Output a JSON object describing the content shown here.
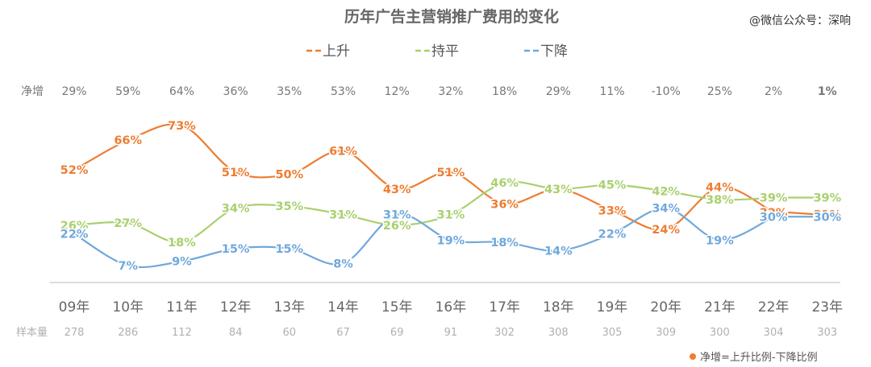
{
  "title": "历年广告主营销推广费用的变化",
  "watermark": "@微信公众号：深响",
  "footnote": "净增=上升比例-下降比例",
  "net_label": "净增",
  "sample_label": "样本量",
  "colors": {
    "up": "#ED7D31",
    "flat": "#A9D06E",
    "down": "#6FA8DC",
    "net_highlight": "#E02020",
    "text": "#777777",
    "footnote_dot": "#ED7D31"
  },
  "chart_data": {
    "type": "line",
    "title": "历年广告主营销推广费用的变化",
    "categories": [
      "09年",
      "10年",
      "11年",
      "12年",
      "13年",
      "14年",
      "15年",
      "16年",
      "17年",
      "18年",
      "19年",
      "20年",
      "21年",
      "22年",
      "23年"
    ],
    "series": [
      {
        "name": "上升",
        "key": "up",
        "values": [
          52,
          66,
          73,
          51,
          50,
          61,
          43,
          51,
          36,
          43,
          33,
          24,
          44,
          32,
          31
        ]
      },
      {
        "name": "持平",
        "key": "flat",
        "values": [
          26,
          27,
          18,
          34,
          35,
          31,
          26,
          31,
          46,
          43,
          45,
          42,
          38,
          39,
          39
        ]
      },
      {
        "name": "下降",
        "key": "down",
        "values": [
          22,
          7,
          9,
          15,
          15,
          8,
          31,
          19,
          18,
          14,
          22,
          34,
          19,
          30,
          30
        ]
      }
    ],
    "net_increase": [
      "29%",
      "59%",
      "64%",
      "36%",
      "35%",
      "53%",
      "12%",
      "32%",
      "18%",
      "29%",
      "11%",
      "-10%",
      "25%",
      "2%",
      "1%"
    ],
    "net_highlight_index": 14,
    "sample_size": [
      "278",
      "286",
      "112",
      "84",
      "60",
      "67",
      "69",
      "91",
      "302",
      "308",
      "305",
      "309",
      "300",
      "304",
      "303"
    ],
    "value_suffix": "%",
    "legend_position": "top-center",
    "grid": false,
    "dashed_last_segment": true
  }
}
